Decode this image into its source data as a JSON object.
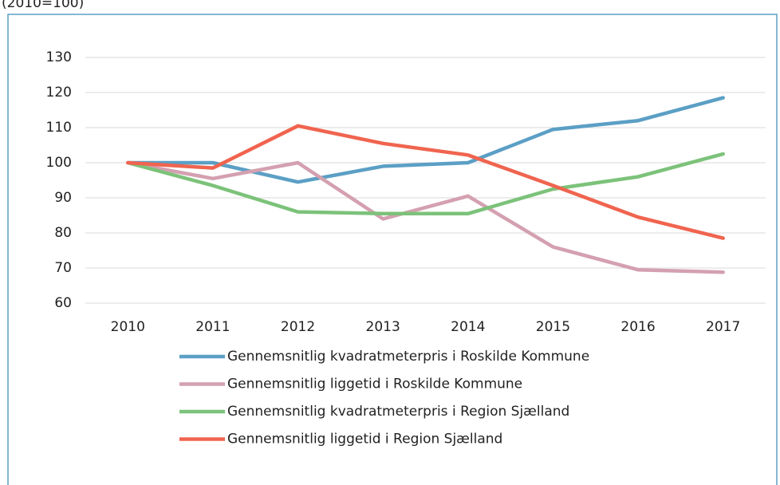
{
  "chart_data": {
    "type": "line",
    "subtitle": "(2010=100)",
    "categories": [
      "2010",
      "2011",
      "2012",
      "2013",
      "2014",
      "2015",
      "2016",
      "2017"
    ],
    "series": [
      {
        "name": "Gennemsnitlig kvadratmeterpris i Roskilde Kommune",
        "color": "#5b9fc5",
        "values": [
          100,
          100,
          94.5,
          99,
          100,
          109.5,
          112,
          118.5
        ]
      },
      {
        "name": "Gennemsnitlig liggetid i Roskilde Kommune",
        "color": "#d4a0b0",
        "values": [
          100,
          95.5,
          100,
          84,
          90.5,
          76,
          69.5,
          68.8
        ]
      },
      {
        "name": "Gennemsnitlig kvadratmeterpris i Region Sjælland",
        "color": "#7cc27a",
        "values": [
          100,
          93.5,
          86,
          85.5,
          85.5,
          92.5,
          96,
          102.5
        ]
      },
      {
        "name": "Gennemsnitlig liggetid i Region Sjælland",
        "color": "#f0644f",
        "values": [
          100,
          98.5,
          110.5,
          105.5,
          102.2,
          93.5,
          84.5,
          78.5
        ]
      }
    ],
    "ylim": [
      60,
      130
    ],
    "yticks": [
      60,
      70,
      80,
      90,
      100,
      110,
      120,
      130
    ],
    "grid": true
  }
}
